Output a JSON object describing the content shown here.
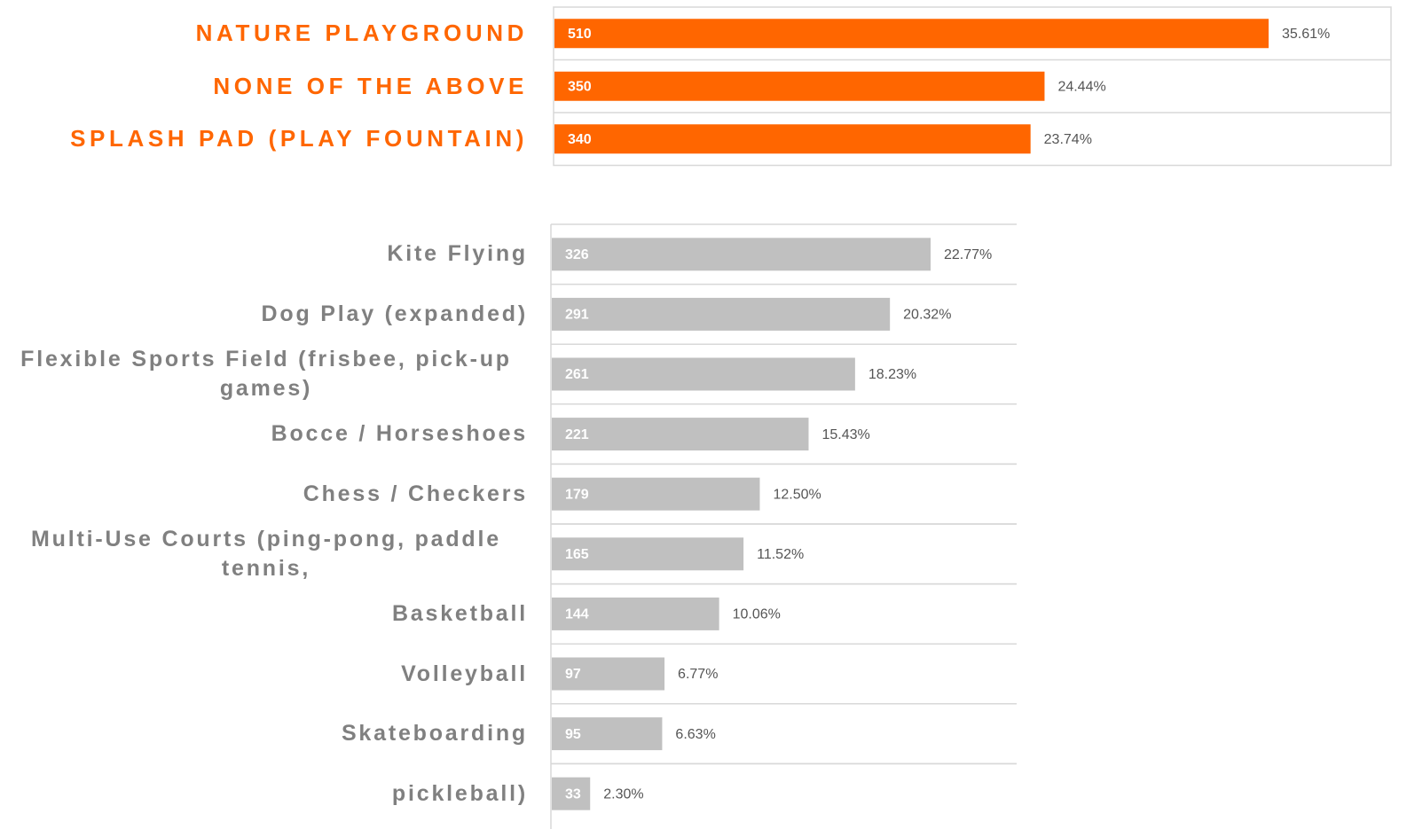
{
  "chart_data": [
    {
      "type": "bar",
      "orientation": "horizontal",
      "color": "#ff6600",
      "label_color": "#ff6600",
      "categories": [
        "NATURE PLAYGROUND",
        "NONE OF THE ABOVE",
        "SPLASH PAD (PLAY FOUNTAIN)"
      ],
      "values": [
        510,
        350,
        340
      ],
      "percent_labels": [
        "35.61%",
        "24.44%",
        "23.74%"
      ]
    },
    {
      "type": "bar",
      "orientation": "horizontal",
      "color": "#c0c0c0",
      "label_color": "#808080",
      "categories": [
        "Kite Flying",
        "Dog Play (expanded)",
        "Flexible Sports Field (frisbee, pick-up games)",
        "Bocce / Horseshoes",
        "Chess / Checkers",
        "Multi-Use Courts (ping-pong, paddle tennis,",
        "Basketball",
        "Volleyball",
        "Skateboarding",
        "pickleball)"
      ],
      "values": [
        326,
        291,
        261,
        221,
        179,
        165,
        144,
        97,
        95,
        33
      ],
      "percent_labels": [
        "22.77%",
        "20.32%",
        "18.23%",
        "15.43%",
        "12.50%",
        "11.52%",
        "10.06%",
        "6.77%",
        "6.63%",
        "2.30%"
      ]
    }
  ]
}
